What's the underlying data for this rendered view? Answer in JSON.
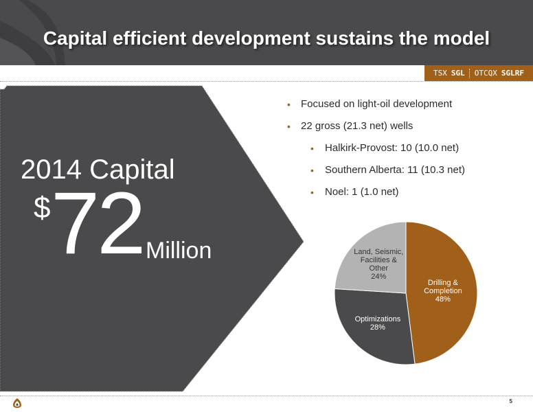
{
  "header": {
    "title": "Capital efficient development sustains the model",
    "ticker": {
      "exchange1": "TSX",
      "symbol1": "SGL",
      "exchange2": "OTCQX",
      "symbol2": "SGLRF"
    }
  },
  "capital": {
    "title": "2014 Capital",
    "currency": "$",
    "amount": "72",
    "unit": "Million"
  },
  "bullets": [
    {
      "level": 1,
      "text": "Focused on light-oil development"
    },
    {
      "level": 1,
      "text": "22 gross (21.3 net) wells"
    },
    {
      "level": 2,
      "text": "Halkirk-Provost: 10 (10.0 net)"
    },
    {
      "level": 2,
      "text": "Southern Alberta: 11 (10.3 net)"
    },
    {
      "level": 2,
      "text": "Noel: 1 (1.0 net)"
    }
  ],
  "chart_data": {
    "type": "pie",
    "slices": [
      {
        "label": "Drilling & Completion",
        "display": [
          "Drilling &",
          "Completion",
          "48%"
        ],
        "value": 48,
        "color": "#a0601a"
      },
      {
        "label": "Optimizations",
        "display": [
          "Optimizations",
          "28%"
        ],
        "value": 28,
        "color": "#4a4a4c"
      },
      {
        "label": "Land, Seismic, Facilities & Other",
        "display": [
          "Land, Seismic,",
          "Facilities &",
          "Other",
          "24%"
        ],
        "value": 24,
        "color": "#b3b3b3"
      }
    ]
  },
  "colors": {
    "header_bg": "#4a4a4c",
    "accent": "#a0601a",
    "panel_bg": "#4a4a4c"
  },
  "footer": {
    "page_number": "5"
  }
}
